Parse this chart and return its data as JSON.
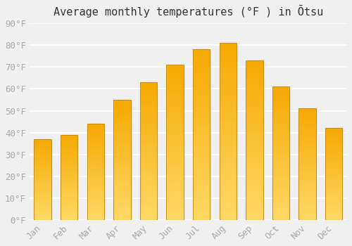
{
  "title": "Average monthly temperatures (°F ) in Ōtsu",
  "months": [
    "Jan",
    "Feb",
    "Mar",
    "Apr",
    "May",
    "Jun",
    "Jul",
    "Aug",
    "Sep",
    "Oct",
    "Nov",
    "Dec"
  ],
  "values": [
    37,
    39,
    44,
    55,
    63,
    71,
    78,
    81,
    73,
    61,
    51,
    42
  ],
  "bar_color_top": "#F5A800",
  "bar_color_bottom": "#FFD966",
  "bar_edge_color": "#C8921A",
  "background_color": "#f0f0f0",
  "grid_color": "#ffffff",
  "ylim": [
    0,
    90
  ],
  "yticks": [
    0,
    10,
    20,
    30,
    40,
    50,
    60,
    70,
    80,
    90
  ],
  "ytick_labels": [
    "0°F",
    "10°F",
    "20°F",
    "30°F",
    "40°F",
    "50°F",
    "60°F",
    "70°F",
    "80°F",
    "90°F"
  ],
  "tick_color": "#aaaaaa",
  "title_fontsize": 11,
  "tick_fontsize": 9,
  "font_family": "monospace",
  "bar_width": 0.65
}
